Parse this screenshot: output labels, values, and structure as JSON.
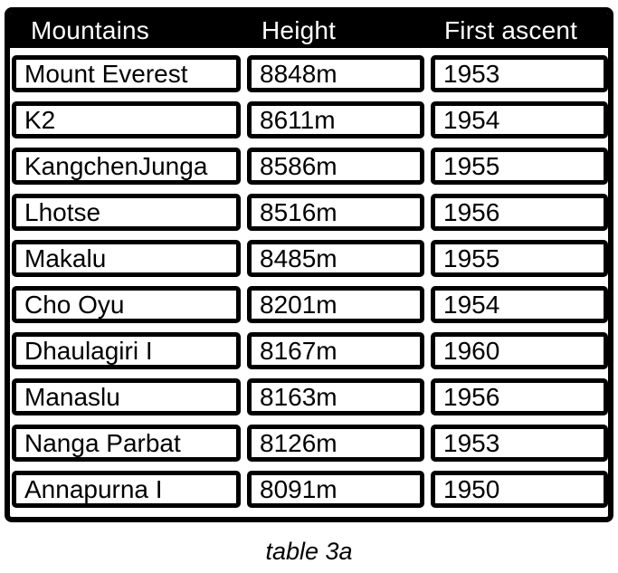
{
  "caption": "table 3a",
  "colors": {
    "header_bg": "#000000",
    "header_text": "#ffffff",
    "cell_bg": "#ffffff",
    "cell_text": "#000000",
    "border": "#000000",
    "page_bg": "#ffffff"
  },
  "chart_data": {
    "type": "table",
    "title": "table 3a",
    "columns": [
      "Mountains",
      "Height",
      "First ascent"
    ],
    "rows": [
      [
        "Mount Everest",
        "8848m",
        "1953"
      ],
      [
        "K2",
        "8611m",
        "1954"
      ],
      [
        "KangchenJunga",
        "8586m",
        "1955"
      ],
      [
        "Lhotse",
        "8516m",
        "1956"
      ],
      [
        "Makalu",
        "8485m",
        "1955"
      ],
      [
        "Cho Oyu",
        "8201m",
        "1954"
      ],
      [
        "Dhaulagiri I",
        "8167m",
        "1960"
      ],
      [
        "Manaslu",
        "8163m",
        "1956"
      ],
      [
        "Nanga Parbat",
        "8126m",
        "1953"
      ],
      [
        "Annapurna I",
        "8091m",
        "1950"
      ]
    ]
  }
}
